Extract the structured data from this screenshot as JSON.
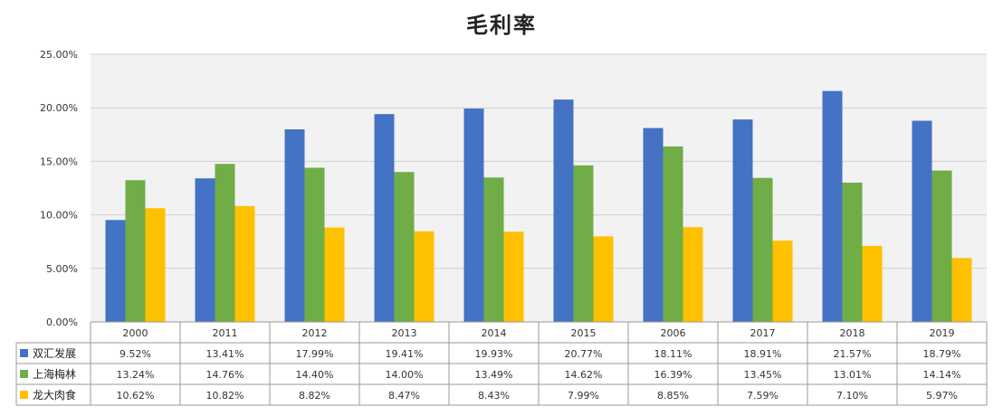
{
  "chart_data": {
    "type": "bar",
    "title": "毛利率",
    "categories": [
      "2000",
      "2011",
      "2012",
      "2013",
      "2014",
      "2015",
      "2006",
      "2017",
      "2018",
      "2019"
    ],
    "ylim": [
      0,
      25
    ],
    "y_ticks": [
      "0.00%",
      "5.00%",
      "10.00%",
      "15.00%",
      "20.00%",
      "25.00%"
    ],
    "grid": true,
    "legend": "data-table-left",
    "series": [
      {
        "name": "双汇发展",
        "color": "#4472c4",
        "values": [
          9.52,
          13.41,
          17.99,
          19.41,
          19.93,
          20.77,
          18.11,
          18.91,
          21.57,
          18.79
        ],
        "labels": [
          "9.52%",
          "13.41%",
          "17.99%",
          "19.41%",
          "19.93%",
          "20.77%",
          "18.11%",
          "18.91%",
          "21.57%",
          "18.79%"
        ]
      },
      {
        "name": "上海梅林",
        "color": "#70ad47",
        "values": [
          13.24,
          14.76,
          14.4,
          14.0,
          13.49,
          14.62,
          16.39,
          13.45,
          13.01,
          14.14
        ],
        "labels": [
          "13.24%",
          "14.76%",
          "14.40%",
          "14.00%",
          "13.49%",
          "14.62%",
          "16.39%",
          "13.45%",
          "13.01%",
          "14.14%"
        ]
      },
      {
        "name": "龙大肉食",
        "color": "#ffc000",
        "values": [
          10.62,
          10.82,
          8.82,
          8.47,
          8.43,
          7.99,
          8.85,
          7.59,
          7.1,
          5.97
        ],
        "labels": [
          "10.62%",
          "10.82%",
          "8.82%",
          "8.47%",
          "8.43%",
          "7.99%",
          "8.85%",
          "7.59%",
          "7.10%",
          "5.97%"
        ]
      }
    ]
  }
}
